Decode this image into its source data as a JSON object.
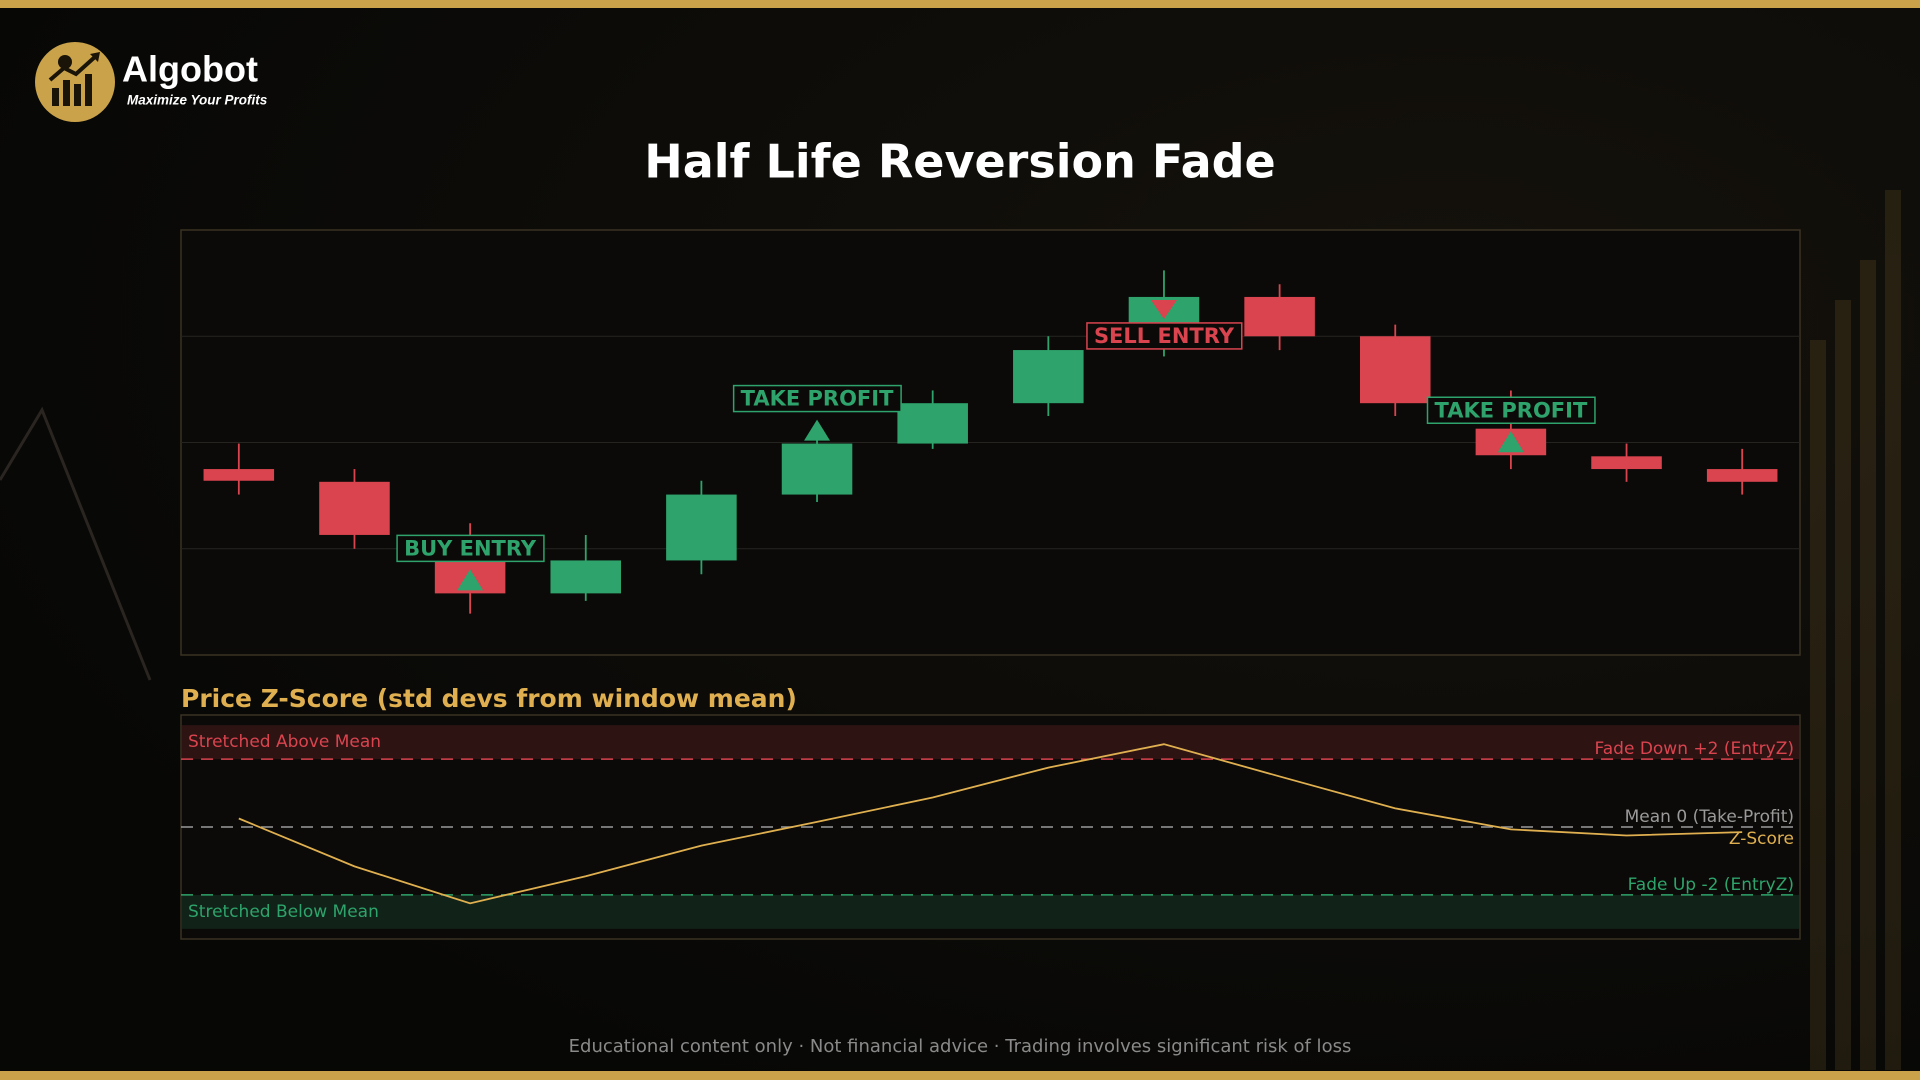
{
  "header": {
    "brand": "Algobot",
    "tagline": "Maximize Your Profits"
  },
  "chart_data": [
    {
      "type": "candlestick",
      "title": "Half Life Reversion Fade",
      "open": [
        1.75,
        1.63,
        1.13,
        0.58,
        0.89,
        1.51,
        1.99,
        2.37,
        3.11,
        3.37,
        3.0,
        2.13,
        1.87,
        1.75
      ],
      "high": [
        1.99,
        1.75,
        1.24,
        1.13,
        1.64,
        2.13,
        2.49,
        3.0,
        3.62,
        3.49,
        3.11,
        2.49,
        1.99,
        1.94
      ],
      "low": [
        1.51,
        1.0,
        0.39,
        0.51,
        0.76,
        1.44,
        1.94,
        2.25,
        2.81,
        2.87,
        2.25,
        1.75,
        1.63,
        1.51
      ],
      "close": [
        1.64,
        1.13,
        0.58,
        0.89,
        1.51,
        1.99,
        2.37,
        2.87,
        3.37,
        3.0,
        2.37,
        1.88,
        1.75,
        1.63
      ],
      "up_color": "#2ea36b",
      "down_color": "#d9444f",
      "ylim": [
        0,
        4
      ],
      "yticks": [
        1,
        2,
        3
      ],
      "grid": true,
      "annotations": [
        {
          "candle": 2,
          "side": "buy",
          "label": "BUY ENTRY"
        },
        {
          "candle": 5,
          "side": "buy",
          "label": "TAKE PROFIT"
        },
        {
          "candle": 8,
          "side": "sell",
          "label": "SELL ENTRY"
        },
        {
          "candle": 11,
          "side": "buy",
          "label": "TAKE PROFIT"
        }
      ]
    },
    {
      "type": "line",
      "title": "Price Z-Score (std devs from window mean)",
      "series": [
        {
          "name": "Z-Score",
          "color": "#e0b050",
          "values": [
            0.25,
            -1.16,
            -2.25,
            -1.45,
            -0.55,
            0.15,
            0.87,
            1.75,
            2.44,
            1.49,
            0.55,
            -0.07,
            -0.25,
            -0.15
          ]
        }
      ],
      "ylim": [
        -3.3,
        3.3
      ],
      "reference_lines": [
        {
          "value": 2,
          "label": "Fade Down +2 (EntryZ)",
          "color": "#d9444f"
        },
        {
          "value": 0,
          "label": "Mean 0 (Take-Profit)",
          "color": "#9a9a9a"
        },
        {
          "value": -2,
          "label": "Fade Up -2 (EntryZ)",
          "color": "#2ea36b"
        }
      ],
      "zones": [
        {
          "label": "Stretched Above Mean",
          "from": 2,
          "to": 3,
          "color": "#d9444f"
        },
        {
          "label": "Stretched Below Mean",
          "from": -2,
          "to": -3,
          "color": "#2ea36b"
        }
      ]
    }
  ],
  "footer": "Educational content only  ·  Not financial advice  ·  Trading involves significant risk of loss"
}
